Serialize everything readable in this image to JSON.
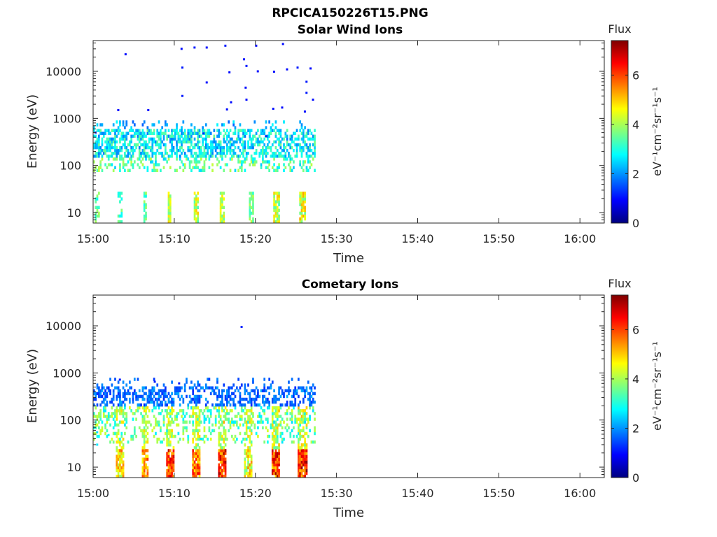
{
  "figure": {
    "main_title": "RPCICA150226T15.PNG",
    "colorbar_gradient": [
      "#00007f",
      "#0000ff",
      "#007fff",
      "#00ffff",
      "#7fff7f",
      "#ffff00",
      "#ff7f00",
      "#ff0000",
      "#7f0000"
    ]
  },
  "chart_data": [
    {
      "type": "heatmap",
      "title": "Solar Wind Ions",
      "xlabel": "Time",
      "ylabel": "Energy (eV)",
      "x_ticks": [
        "15:00",
        "15:10",
        "15:20",
        "15:30",
        "15:40",
        "15:50",
        "16:00"
      ],
      "x_range_min": [
        0,
        63
      ],
      "y_scale": "log",
      "y_range_eV": [
        6,
        45000
      ],
      "y_ticks": [
        10,
        100,
        1000,
        10000
      ],
      "y_tick_labels": [
        "10",
        "100",
        "1000",
        "10000"
      ],
      "colorbar": {
        "title": "Flux",
        "label": "eV⁻¹cm⁻²sr⁻¹s⁻¹",
        "range": [
          0,
          7.4
        ],
        "ticks": [
          "0",
          "2",
          "4",
          "6"
        ]
      },
      "data_extent_min": [
        0,
        27.2
      ],
      "seed": 7,
      "bands": [
        {
          "emin": 150,
          "emax": 600,
          "dens": 0.55,
          "vmin": 1.8,
          "vmax": 3.6
        },
        {
          "emin": 70,
          "emax": 150,
          "dens": 0.28,
          "vmin": 2.4,
          "vmax": 4.2
        },
        {
          "emin": 600,
          "emax": 950,
          "dens": 0.12,
          "vmin": 1.6,
          "vmax": 2.8
        }
      ],
      "bursts": [
        {
          "t": 0.4,
          "w": 0.5,
          "emin": 6,
          "emax": 28,
          "dens": 0.5,
          "vmin": 2.8,
          "vmax": 4.0
        },
        {
          "t": 3.2,
          "w": 0.5,
          "emin": 6,
          "emax": 28,
          "dens": 0.6,
          "vmin": 2.8,
          "vmax": 3.8
        },
        {
          "t": 6.3,
          "w": 0.5,
          "emin": 6,
          "emax": 28,
          "dens": 0.6,
          "vmin": 2.8,
          "vmax": 4.0
        },
        {
          "t": 9.3,
          "w": 0.5,
          "emin": 6,
          "emax": 28,
          "dens": 0.8,
          "vmin": 3.5,
          "vmax": 5.0
        },
        {
          "t": 12.6,
          "w": 0.7,
          "emin": 6,
          "emax": 28,
          "dens": 0.8,
          "vmin": 3.3,
          "vmax": 5.0
        },
        {
          "t": 15.8,
          "w": 0.7,
          "emin": 6,
          "emax": 28,
          "dens": 0.8,
          "vmin": 3.5,
          "vmax": 5.0
        },
        {
          "t": 19.3,
          "w": 0.6,
          "emin": 6,
          "emax": 28,
          "dens": 0.7,
          "vmin": 3.0,
          "vmax": 4.2
        },
        {
          "t": 22.5,
          "w": 0.7,
          "emin": 6,
          "emax": 28,
          "dens": 0.8,
          "vmin": 3.2,
          "vmax": 5.2
        },
        {
          "t": 25.6,
          "w": 0.8,
          "emin": 6,
          "emax": 28,
          "dens": 0.8,
          "vmin": 3.5,
          "vmax": 5.4
        }
      ],
      "scatter": [
        {
          "t": 4.0,
          "e": 23000,
          "v": 1.0
        },
        {
          "t": 10.9,
          "e": 30000,
          "v": 1.0
        },
        {
          "t": 12.5,
          "e": 32000,
          "v": 1.1
        },
        {
          "t": 14.0,
          "e": 32000,
          "v": 1.0
        },
        {
          "t": 16.3,
          "e": 35000,
          "v": 1.1
        },
        {
          "t": 20.1,
          "e": 35000,
          "v": 1.0
        },
        {
          "t": 23.4,
          "e": 38000,
          "v": 1.0
        },
        {
          "t": 11.0,
          "e": 12000,
          "v": 1.1
        },
        {
          "t": 16.8,
          "e": 9500,
          "v": 1.0
        },
        {
          "t": 18.6,
          "e": 18000,
          "v": 1.0
        },
        {
          "t": 18.9,
          "e": 13000,
          "v": 1.1
        },
        {
          "t": 20.3,
          "e": 10000,
          "v": 1.0
        },
        {
          "t": 22.3,
          "e": 9800,
          "v": 1.0
        },
        {
          "t": 23.9,
          "e": 11000,
          "v": 1.0
        },
        {
          "t": 25.2,
          "e": 12000,
          "v": 1.1
        },
        {
          "t": 26.8,
          "e": 11500,
          "v": 1.0
        },
        {
          "t": 26.3,
          "e": 6000,
          "v": 1.1
        },
        {
          "t": 14.0,
          "e": 5800,
          "v": 1.0
        },
        {
          "t": 11.0,
          "e": 3000,
          "v": 1.1
        },
        {
          "t": 17.0,
          "e": 2200,
          "v": 1.0
        },
        {
          "t": 18.8,
          "e": 4500,
          "v": 1.0
        },
        {
          "t": 18.9,
          "e": 2500,
          "v": 1.0
        },
        {
          "t": 26.3,
          "e": 3500,
          "v": 1.1
        },
        {
          "t": 27.1,
          "e": 2500,
          "v": 1.0
        },
        {
          "t": 3.1,
          "e": 1500,
          "v": 1.0
        },
        {
          "t": 6.8,
          "e": 1500,
          "v": 1.0
        },
        {
          "t": 16.5,
          "e": 1550,
          "v": 1.0
        },
        {
          "t": 22.2,
          "e": 1600,
          "v": 1.0
        },
        {
          "t": 23.3,
          "e": 1700,
          "v": 1.0
        },
        {
          "t": 26.1,
          "e": 1400,
          "v": 1.0
        },
        {
          "t": 0.3,
          "e": 500,
          "v": 1.2
        },
        {
          "t": 13.6,
          "e": 480,
          "v": 1.2
        },
        {
          "t": 21.3,
          "e": 420,
          "v": 1.2
        }
      ]
    },
    {
      "type": "heatmap",
      "title": "Cometary Ions",
      "xlabel": "Time",
      "ylabel": "Energy (eV)",
      "x_ticks": [
        "15:00",
        "15:10",
        "15:20",
        "15:30",
        "15:40",
        "15:50",
        "16:00"
      ],
      "x_range_min": [
        0,
        63
      ],
      "y_scale": "log",
      "y_range_eV": [
        6,
        45000
      ],
      "y_ticks": [
        10,
        100,
        1000,
        10000
      ],
      "y_tick_labels": [
        "10",
        "100",
        "1000",
        "10000"
      ],
      "colorbar": {
        "title": "Flux",
        "label": "eV⁻¹cm⁻²sr⁻¹s⁻¹",
        "range": [
          0,
          7.4
        ],
        "ticks": [
          "0",
          "2",
          "4",
          "6"
        ]
      },
      "data_extent_min": [
        0,
        27.2
      ],
      "seed": 19,
      "bands": [
        {
          "emin": 200,
          "emax": 500,
          "dens": 0.45,
          "vmin": 1.2,
          "vmax": 2.2
        },
        {
          "emin": 90,
          "emax": 200,
          "dens": 0.35,
          "vmin": 2.5,
          "vmax": 4.4
        },
        {
          "emin": 30,
          "emax": 90,
          "dens": 0.18,
          "vmin": 2.6,
          "vmax": 4.4
        },
        {
          "emin": 500,
          "emax": 750,
          "dens": 0.08,
          "vmin": 1.3,
          "vmax": 2.0
        }
      ],
      "bursts": [
        {
          "t": 0.6,
          "w": 0.7,
          "emin": 60,
          "emax": 200,
          "dens": 0.4,
          "vmin": 3.0,
          "vmax": 4.6
        },
        {
          "t": 3.2,
          "w": 0.9,
          "emin": 6,
          "emax": 25,
          "dens": 0.8,
          "vmin": 3.8,
          "vmax": 5.8
        },
        {
          "t": 3.2,
          "w": 0.9,
          "emin": 25,
          "emax": 200,
          "dens": 0.45,
          "vmin": 3.4,
          "vmax": 5.0
        },
        {
          "t": 6.3,
          "w": 0.9,
          "emin": 6,
          "emax": 25,
          "dens": 0.8,
          "vmin": 4.4,
          "vmax": 6.2
        },
        {
          "t": 6.3,
          "w": 0.9,
          "emin": 25,
          "emax": 200,
          "dens": 0.45,
          "vmin": 3.4,
          "vmax": 5.0
        },
        {
          "t": 9.4,
          "w": 0.9,
          "emin": 6,
          "emax": 25,
          "dens": 0.9,
          "vmin": 5.0,
          "vmax": 7.0
        },
        {
          "t": 9.4,
          "w": 0.9,
          "emin": 25,
          "emax": 200,
          "dens": 0.5,
          "vmin": 3.4,
          "vmax": 5.0
        },
        {
          "t": 12.6,
          "w": 1.0,
          "emin": 6,
          "emax": 25,
          "dens": 0.9,
          "vmin": 4.6,
          "vmax": 6.6
        },
        {
          "t": 12.6,
          "w": 1.0,
          "emin": 25,
          "emax": 200,
          "dens": 0.5,
          "vmin": 3.4,
          "vmax": 5.0
        },
        {
          "t": 15.8,
          "w": 1.1,
          "emin": 6,
          "emax": 25,
          "dens": 0.9,
          "vmin": 5.0,
          "vmax": 7.2
        },
        {
          "t": 15.8,
          "w": 1.1,
          "emin": 25,
          "emax": 200,
          "dens": 0.5,
          "vmin": 3.4,
          "vmax": 5.2
        },
        {
          "t": 19.0,
          "w": 1.1,
          "emin": 6,
          "emax": 25,
          "dens": 0.8,
          "vmin": 3.6,
          "vmax": 5.6
        },
        {
          "t": 19.0,
          "w": 1.1,
          "emin": 25,
          "emax": 200,
          "dens": 0.5,
          "vmin": 3.4,
          "vmax": 5.0
        },
        {
          "t": 22.4,
          "w": 1.1,
          "emin": 6,
          "emax": 25,
          "dens": 0.9,
          "vmin": 4.8,
          "vmax": 7.2
        },
        {
          "t": 22.4,
          "w": 1.1,
          "emin": 25,
          "emax": 200,
          "dens": 0.5,
          "vmin": 3.4,
          "vmax": 5.2
        },
        {
          "t": 25.7,
          "w": 1.2,
          "emin": 6,
          "emax": 25,
          "dens": 0.9,
          "vmin": 5.0,
          "vmax": 7.4
        },
        {
          "t": 25.7,
          "w": 1.2,
          "emin": 25,
          "emax": 200,
          "dens": 0.5,
          "vmin": 3.4,
          "vmax": 5.2
        }
      ],
      "scatter": [
        {
          "t": 18.3,
          "e": 9500,
          "v": 1.2
        },
        {
          "t": 3.3,
          "e": 720,
          "v": 1.1
        },
        {
          "t": 7.6,
          "e": 650,
          "v": 1.1
        },
        {
          "t": 10.6,
          "e": 600,
          "v": 1.1
        },
        {
          "t": 0.5,
          "e": 55,
          "v": 2.5
        },
        {
          "t": 1.9,
          "e": 48,
          "v": 2.8
        },
        {
          "t": 0.5,
          "e": 30,
          "v": 2.6
        },
        {
          "t": 13.3,
          "e": 40,
          "v": 2.6
        }
      ]
    }
  ]
}
